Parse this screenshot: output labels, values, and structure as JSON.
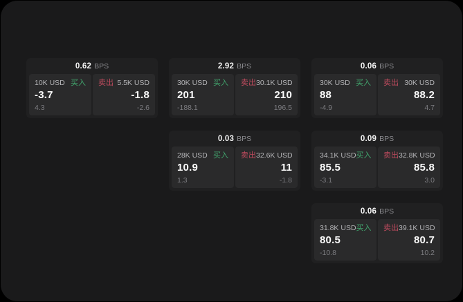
{
  "labels": {
    "bps": "BPS",
    "buy": "买入",
    "sell": "卖出"
  },
  "colors": {
    "buy_green": "#41a46d",
    "sell_red": "#bf4b5e",
    "window_bg": "#1a1a1b",
    "card_bg": "#202021",
    "panel_bg": "#2a2a2b"
  },
  "cards": [
    {
      "bps": "0.62",
      "buy": {
        "size": "10K USD",
        "value": "-3.7",
        "sub": "4.3"
      },
      "sell": {
        "size": "5.5K USD",
        "value": "-1.8",
        "sub": "-2.6"
      }
    },
    {
      "bps": "2.92",
      "buy": {
        "size": "30K USD",
        "value": "201",
        "sub": "-188.1"
      },
      "sell": {
        "size": "30.1K USD",
        "value": "210",
        "sub": "196.5"
      }
    },
    {
      "bps": "0.06",
      "buy": {
        "size": "30K USD",
        "value": "88",
        "sub": "-4.9"
      },
      "sell": {
        "size": "30K USD",
        "value": "88.2",
        "sub": "4.7"
      }
    },
    {
      "bps": "0.03",
      "buy": {
        "size": "28K USD",
        "value": "10.9",
        "sub": "1.3"
      },
      "sell": {
        "size": "32.6K USD",
        "value": "11",
        "sub": "-1.8"
      }
    },
    {
      "bps": "0.09",
      "buy": {
        "size": "34.1K USD",
        "value": "85.5",
        "sub": "-3.1"
      },
      "sell": {
        "size": "32.8K USD",
        "value": "85.8",
        "sub": "3.0"
      }
    },
    {
      "bps": "0.06",
      "buy": {
        "size": "31.8K USD",
        "value": "80.5",
        "sub": "-10.8"
      },
      "sell": {
        "size": "39.1K USD",
        "value": "80.7",
        "sub": "10.2"
      }
    }
  ]
}
